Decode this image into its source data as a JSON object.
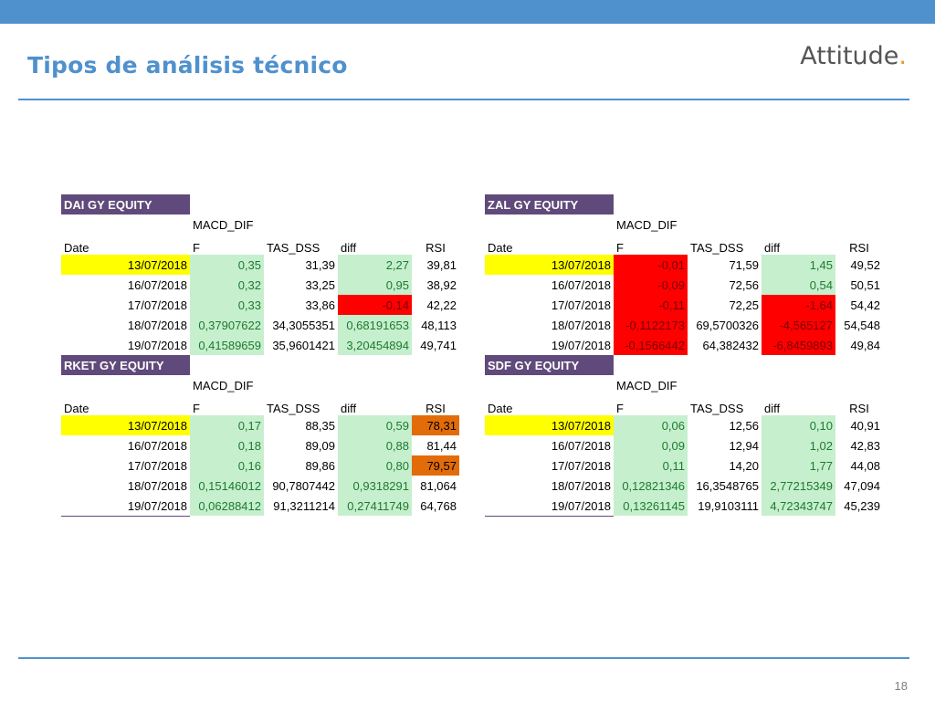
{
  "slide": {
    "title": "Tipos de análisis técnico",
    "logo_text": "Attitude",
    "logo_dot": ".",
    "page_number": "18"
  },
  "colors": {
    "accent_blue": "#4f91cd",
    "ticker_purple": "#604a7b",
    "highlight_yellow": "#ffff00",
    "positive_green": "#c6efce",
    "negative_red": "#ff0000",
    "overbought_orange": "#e26b0a"
  },
  "tables": {
    "dai": {
      "ticker": "DAI GY EQUITY",
      "headers": {
        "macd_top": "MACD_DIF",
        "date": "Date",
        "f": "F",
        "tas": "TAS_DSS",
        "diff": "diff",
        "rsi": "RSI"
      },
      "rows": [
        {
          "date": "13/07/2018",
          "f": "0,35",
          "tas": "31,39",
          "diff": "2,27",
          "rsi": "39,81"
        },
        {
          "date": "16/07/2018",
          "f": "0,32",
          "tas": "33,25",
          "diff": "0,95",
          "rsi": "38,92"
        },
        {
          "date": "17/07/2018",
          "f": "0,33",
          "tas": "33,86",
          "diff": "-0,14",
          "rsi": "42,22"
        },
        {
          "date": "18/07/2018",
          "f": "0,37907622",
          "tas": "34,3055351",
          "diff": "0,68191653",
          "rsi": "48,113"
        },
        {
          "date": "19/07/2018",
          "f": "0,41589659",
          "tas": "35,9601421",
          "diff": "3,20454894",
          "rsi": "49,741"
        }
      ]
    },
    "zal": {
      "ticker": "ZAL GY EQUITY",
      "headers": {
        "macd_top": "MACD_DIF",
        "date": "Date",
        "f": "F",
        "tas": "TAS_DSS",
        "diff": "diff",
        "rsi": "RSI"
      },
      "rows": [
        {
          "date": "13/07/2018",
          "f": "-0,01",
          "tas": "71,59",
          "diff": "1,45",
          "rsi": "49,52"
        },
        {
          "date": "16/07/2018",
          "f": "-0,09",
          "tas": "72,56",
          "diff": "0,54",
          "rsi": "50,51"
        },
        {
          "date": "17/07/2018",
          "f": "-0,11",
          "tas": "72,25",
          "diff": "-1,64",
          "rsi": "54,42"
        },
        {
          "date": "18/07/2018",
          "f": "-0,1122173",
          "tas": "69,5700326",
          "diff": "-4,565127",
          "rsi": "54,548"
        },
        {
          "date": "19/07/2018",
          "f": "-0,1566442",
          "tas": "64,382432",
          "diff": "-6,8459893",
          "rsi": "49,84"
        }
      ]
    },
    "rket": {
      "ticker": "RKET GY EQUITY",
      "headers": {
        "macd_top": "MACD_DIF",
        "date": "Date",
        "f": "F",
        "tas": "TAS_DSS",
        "diff": "diff",
        "rsi": "RSI"
      },
      "rows": [
        {
          "date": "13/07/2018",
          "f": "0,17",
          "tas": "88,35",
          "diff": "0,59",
          "rsi": "78,31"
        },
        {
          "date": "16/07/2018",
          "f": "0,18",
          "tas": "89,09",
          "diff": "0,88",
          "rsi": "81,44"
        },
        {
          "date": "17/07/2018",
          "f": "0,16",
          "tas": "89,86",
          "diff": "0,80",
          "rsi": "79,57"
        },
        {
          "date": "18/07/2018",
          "f": "0,15146012",
          "tas": "90,7807442",
          "diff": "0,9318291",
          "rsi": "81,064"
        },
        {
          "date": "19/07/2018",
          "f": "0,06288412",
          "tas": "91,3211214",
          "diff": "0,27411749",
          "rsi": "64,768"
        }
      ]
    },
    "sdf": {
      "ticker": "SDF GY EQUITY",
      "headers": {
        "macd_top": "MACD_DIF",
        "date": "Date",
        "f": "F",
        "tas": "TAS_DSS",
        "diff": "diff",
        "rsi": "RSI"
      },
      "rows": [
        {
          "date": "13/07/2018",
          "f": "0,06",
          "tas": "12,56",
          "diff": "0,10",
          "rsi": "40,91"
        },
        {
          "date": "16/07/2018",
          "f": "0,09",
          "tas": "12,94",
          "diff": "1,02",
          "rsi": "42,83"
        },
        {
          "date": "17/07/2018",
          "f": "0,11",
          "tas": "14,20",
          "diff": "1,77",
          "rsi": "44,08"
        },
        {
          "date": "18/07/2018",
          "f": "0,12821346",
          "tas": "16,3548765",
          "diff": "2,77215349",
          "rsi": "47,094"
        },
        {
          "date": "19/07/2018",
          "f": "0,13261145",
          "tas": "19,9103111",
          "diff": "4,72343747",
          "rsi": "45,239"
        }
      ]
    }
  }
}
